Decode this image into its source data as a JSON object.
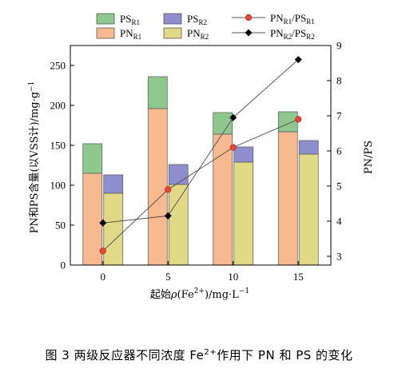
{
  "chart_data": {
    "type": "bar",
    "categories": [
      "0",
      "5",
      "10",
      "15"
    ],
    "xlabel": "起始ρ(Fe²⁺)/mg·L⁻¹",
    "ylabel": "PN和PS含量(以VSS计)/mg·g⁻¹",
    "y2label": "PN/PS",
    "ylim": [
      0,
      275
    ],
    "yticks": [
      0,
      50,
      100,
      150,
      200,
      250
    ],
    "y2lim": [
      2.75,
      9
    ],
    "y2ticks": [
      3,
      4,
      5,
      6,
      7,
      8,
      9
    ],
    "legend_position": "top",
    "stacked_series": [
      {
        "name": "PN_R1",
        "label": "PNR1",
        "reactor": "R1",
        "role": "base",
        "color": "#f7b98f",
        "values": [
          115,
          196,
          164,
          167
        ]
      },
      {
        "name": "PS_R1",
        "label": "PSR1",
        "reactor": "R1",
        "role": "top",
        "color": "#8ec88f",
        "values": [
          37,
          40,
          27,
          25
        ]
      },
      {
        "name": "PN_R2",
        "label": "PNR2",
        "reactor": "R2",
        "role": "base",
        "color": "#e0d985",
        "values": [
          90,
          101,
          129,
          139
        ]
      },
      {
        "name": "PS_R2",
        "label": "PSR2",
        "reactor": "R2",
        "role": "top",
        "color": "#8e8ecf",
        "values": [
          23,
          25,
          19,
          17
        ]
      }
    ],
    "line_series": [
      {
        "name": "PN_R1/PS_R1",
        "label": "PNR1/PSR1",
        "marker": "circle",
        "color": "#e8443a",
        "x": [
          "0",
          "5",
          "10",
          "15"
        ],
        "y": [
          3.15,
          4.9,
          6.1,
          6.9
        ]
      },
      {
        "name": "PN_R2/PS_R2",
        "label": "PNR2/PSR2",
        "marker": "diamond",
        "color": "#000000",
        "x": [
          "0",
          "5",
          "10",
          "15"
        ],
        "y": [
          3.95,
          4.15,
          6.95,
          8.6
        ]
      }
    ]
  },
  "legend": {
    "ps_r1": {
      "main": "PS",
      "sub": "R1"
    },
    "ps_r2": {
      "main": "PS",
      "sub": "R2"
    },
    "pn_r1": {
      "main": "PN",
      "sub": "R1"
    },
    "pn_r2": {
      "main": "PN",
      "sub": "R2"
    },
    "ratio_r1": {
      "a": "PN",
      "asub": "R1",
      "b": "/PS",
      "bsub": "R1"
    },
    "ratio_r2": {
      "a": "PN",
      "asub": "R2",
      "b": "/PS",
      "bsub": "R2"
    }
  },
  "axis_titles": {
    "xlabel": {
      "prefix": "起始",
      "rho": "ρ",
      "open": "(Fe",
      "sup": "2+",
      "close": ")/mg·L",
      "sup2": "−1"
    },
    "ylabel": {
      "text": "PN和PS含量(以VSS计)/mg·g",
      "sup": "−1"
    },
    "y2label": "PN/PS"
  },
  "caption": {
    "label": "图",
    "number": "3",
    "text1": "两级反应器不同浓度 Fe",
    "sup": "2+",
    "text2": "作用下 PN 和 PS 的变化"
  }
}
